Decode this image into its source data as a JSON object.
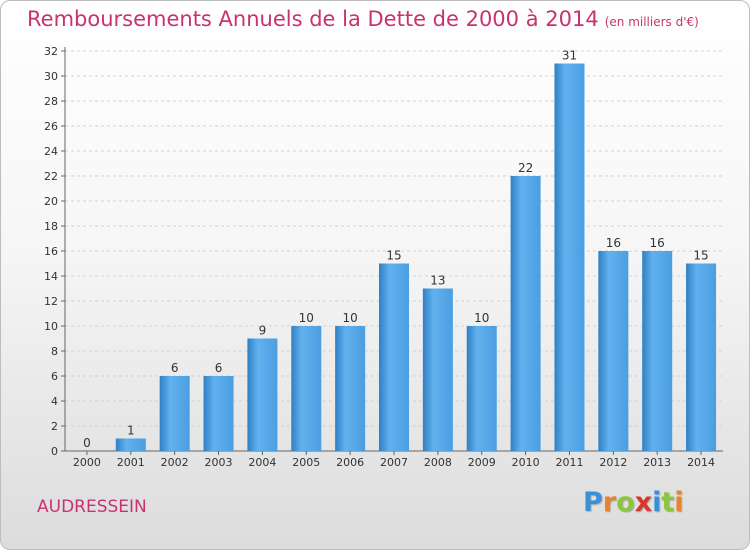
{
  "chart_data": {
    "type": "bar",
    "title": "Remboursements Annuels de la Dette de 2000 à 2014",
    "subtitle": "(en milliers d'€)",
    "categories": [
      "2000",
      "2001",
      "2002",
      "2003",
      "2004",
      "2005",
      "2006",
      "2007",
      "2008",
      "2009",
      "2010",
      "2011",
      "2012",
      "2013",
      "2014"
    ],
    "values": [
      0,
      1,
      6,
      6,
      9,
      10,
      10,
      15,
      13,
      10,
      22,
      31,
      16,
      16,
      15
    ],
    "ylim": [
      0,
      32
    ],
    "yticks": [
      0,
      2,
      4,
      6,
      8,
      10,
      12,
      14,
      16,
      18,
      20,
      22,
      24,
      26,
      28,
      30,
      32
    ],
    "xlabel": "",
    "ylabel": "",
    "grid": true,
    "bar_color": "#4a9ee0",
    "bar_color_light": "#62b1ee",
    "bar_color_dark": "#2f80c4"
  },
  "footer": {
    "commune": "AUDRESSEIN",
    "logo_letters": [
      "P",
      "r",
      "o",
      "x",
      "i",
      "t",
      "i"
    ],
    "logo_colors": [
      "#3a8fd6",
      "#e8832a",
      "#8cc63f",
      "#d9372c",
      "#3a8fd6",
      "#8cc63f",
      "#e8832a"
    ]
  }
}
